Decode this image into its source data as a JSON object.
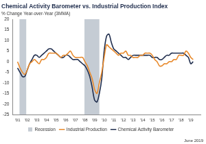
{
  "chart_data": {
    "type": "line",
    "title": "Chemical Activity Barometer vs. Industrial Production Index",
    "subtitle": "% Change Year-over-Year (3MMA)",
    "annotation": "June 2019",
    "x": [
      2001,
      2001.25,
      2001.5,
      2001.75,
      2002,
      2002.25,
      2002.5,
      2002.75,
      2003,
      2003.25,
      2003.5,
      2003.75,
      2004,
      2004.25,
      2004.5,
      2004.75,
      2005,
      2005.25,
      2005.5,
      2005.75,
      2006,
      2006.25,
      2006.5,
      2006.75,
      2007,
      2007.25,
      2007.5,
      2007.75,
      2008,
      2008.25,
      2008.5,
      2008.75,
      2009,
      2009.25,
      2009.5,
      2009.75,
      2010,
      2010.25,
      2010.5,
      2010.75,
      2011,
      2011.25,
      2011.5,
      2011.75,
      2012,
      2012.25,
      2012.5,
      2012.75,
      2013,
      2013.25,
      2013.5,
      2013.75,
      2014,
      2014.25,
      2014.5,
      2014.75,
      2015,
      2015.25,
      2015.5,
      2015.75,
      2016,
      2016.25,
      2016.5,
      2016.75,
      2017,
      2017.25,
      2017.5,
      2017.75,
      2018,
      2018.25,
      2018.5,
      2018.75,
      2019,
      2019.25
    ],
    "xlim": [
      2001,
      2019.5
    ],
    "xticks": [
      {
        "value": 2001,
        "label": "'01"
      },
      {
        "value": 2002,
        "label": "'02"
      },
      {
        "value": 2003,
        "label": "'03"
      },
      {
        "value": 2004,
        "label": "'04"
      },
      {
        "value": 2005,
        "label": "'05"
      },
      {
        "value": 2006,
        "label": "'06"
      },
      {
        "value": 2007,
        "label": "'07"
      },
      {
        "value": 2008,
        "label": "'08"
      },
      {
        "value": 2009,
        "label": "'09"
      },
      {
        "value": 2010,
        "label": "'10"
      },
      {
        "value": 2011,
        "label": "'11"
      },
      {
        "value": 2012,
        "label": "'12"
      },
      {
        "value": 2013,
        "label": "'13"
      },
      {
        "value": 2014,
        "label": "'14"
      },
      {
        "value": 2015,
        "label": "'15"
      },
      {
        "value": 2016,
        "label": "'16"
      },
      {
        "value": 2017,
        "label": "'17"
      },
      {
        "value": 2018,
        "label": "'18"
      },
      {
        "value": 2019,
        "label": "'19"
      }
    ],
    "ylim": [
      -25,
      20
    ],
    "yticks": [
      -25,
      -20,
      -15,
      -10,
      -5,
      0,
      5,
      10,
      15,
      20
    ],
    "grid": false,
    "legend": "bottom",
    "recessions": {
      "name": "Recession",
      "color": "#c5ccd4",
      "periods": [
        [
          2001.2,
          2001.9
        ],
        [
          2007.95,
          2009.5
        ]
      ]
    },
    "series": [
      {
        "name": "Industrial Production",
        "color": "#e8892b",
        "values": [
          0,
          -3,
          -5,
          -6,
          -4,
          -1,
          0,
          1,
          0,
          -1,
          1,
          1,
          2,
          4,
          4,
          4,
          4,
          3,
          2,
          3,
          3,
          4,
          5,
          3,
          2,
          2,
          2,
          2,
          0,
          -2,
          -5,
          -8,
          -13,
          -15,
          -10,
          -5,
          2,
          8,
          7,
          6,
          5,
          4,
          3,
          4,
          4,
          5,
          3,
          3,
          2,
          2,
          2,
          3,
          3,
          4,
          4,
          4,
          3,
          1,
          0,
          -2,
          -2,
          -1,
          -1,
          0,
          0,
          1,
          1,
          3,
          3,
          3,
          5,
          4,
          2,
          1
        ]
      },
      {
        "name": "Chemical Activity Barometer",
        "color": "#1f2d4d",
        "values": [
          -3,
          -5,
          -7,
          -7,
          -4,
          -1,
          1,
          3,
          3,
          2,
          3,
          4,
          5,
          6,
          6,
          5,
          4,
          3,
          2,
          2,
          3,
          3,
          2,
          1,
          1,
          1,
          0,
          -1,
          -2,
          -4,
          -7,
          -12,
          -18,
          -19,
          -15,
          -8,
          5,
          12,
          13,
          9,
          6,
          5,
          4,
          3,
          2,
          2,
          1,
          2,
          3,
          3,
          3,
          3,
          3,
          3,
          3,
          3,
          2,
          2,
          2,
          1,
          1,
          2,
          3,
          3,
          4,
          4,
          4,
          4,
          4,
          4,
          3,
          2,
          -1,
          0
        ]
      }
    ]
  }
}
